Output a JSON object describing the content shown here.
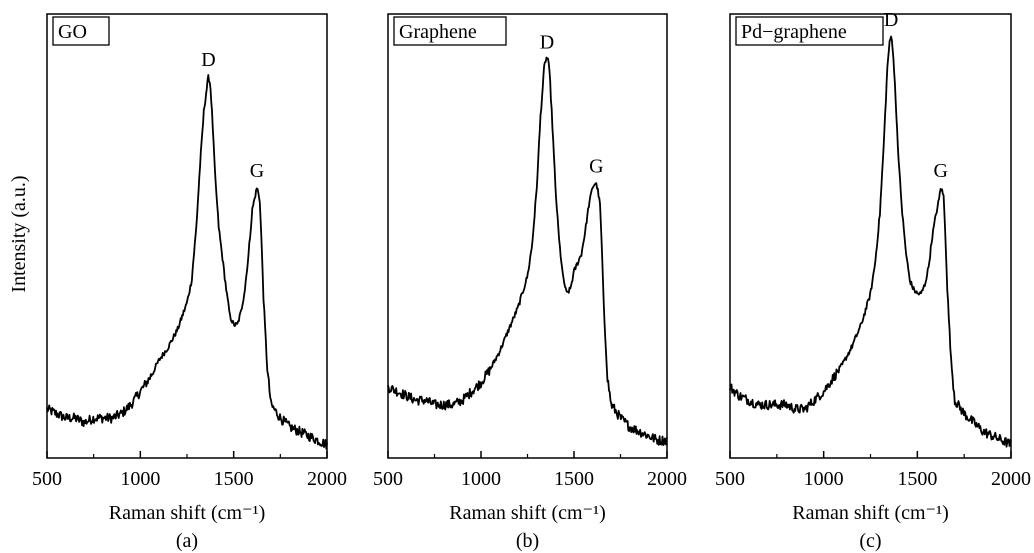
{
  "figure": {
    "ylabel": "Intensity (a.u.)",
    "line_color": "#000000",
    "background": "#ffffff"
  },
  "chart_data": [
    {
      "type": "line",
      "title": "GO",
      "caption": "(a)",
      "xlabel": "Raman shift (cm⁻¹)",
      "ylabel": "Intensity (a.u.)",
      "xlim": [
        500,
        2000
      ],
      "ylim": [
        0,
        100
      ],
      "xticks": [
        500,
        1000,
        1500,
        2000
      ],
      "grid": false,
      "series": [
        {
          "x": [
            500,
            550,
            600,
            650,
            700,
            750,
            800,
            850,
            900,
            950,
            1000,
            1050,
            1100,
            1150,
            1200,
            1250,
            1275,
            1300,
            1320,
            1340,
            1355,
            1365,
            1375,
            1385,
            1400,
            1420,
            1440,
            1460,
            1480,
            1500,
            1520,
            1540,
            1560,
            1580,
            1600,
            1615,
            1625,
            1640,
            1650,
            1660,
            1680,
            1700,
            1750,
            1800,
            1850,
            1900,
            1950,
            2000
          ],
          "y": [
            11,
            10,
            9,
            9,
            8,
            9,
            9,
            9,
            10,
            12,
            15,
            18,
            22,
            25,
            29,
            35,
            40,
            52,
            66,
            78,
            83,
            86,
            84,
            77,
            64,
            52,
            45,
            38,
            32,
            30,
            30,
            33,
            38,
            46,
            56,
            59,
            61,
            58,
            48,
            36,
            20,
            12,
            9,
            7,
            6,
            5,
            4,
            3
          ]
        }
      ],
      "annotations": [
        {
          "text": "D",
          "x": 1365,
          "y": 86
        },
        {
          "text": "G",
          "x": 1625,
          "y": 61
        }
      ]
    },
    {
      "type": "line",
      "title": "Graphene",
      "caption": "(b)",
      "xlabel": "Raman shift (cm⁻¹)",
      "ylabel": "",
      "xlim": [
        500,
        2000
      ],
      "ylim": [
        0,
        100
      ],
      "xticks": [
        500,
        1000,
        1500,
        2000
      ],
      "grid": false,
      "series": [
        {
          "x": [
            500,
            550,
            600,
            650,
            700,
            750,
            800,
            850,
            900,
            950,
            1000,
            1050,
            1100,
            1150,
            1200,
            1250,
            1275,
            1300,
            1320,
            1340,
            1350,
            1360,
            1370,
            1385,
            1400,
            1420,
            1440,
            1460,
            1480,
            1500,
            1520,
            1540,
            1560,
            1580,
            1600,
            1615,
            1625,
            1640,
            1650,
            1660,
            1680,
            1700,
            1750,
            1800,
            1850,
            1900,
            1950,
            2000
          ],
          "y": [
            16,
            15,
            14,
            13,
            13,
            12,
            12,
            12,
            13,
            15,
            17,
            20,
            24,
            29,
            34,
            41,
            48,
            61,
            77,
            88,
            90,
            90,
            86,
            74,
            61,
            49,
            41,
            37,
            38,
            42,
            44,
            46,
            51,
            57,
            61,
            62,
            61,
            57,
            47,
            34,
            18,
            12,
            9,
            7,
            6,
            5,
            4,
            4
          ]
        }
      ],
      "annotations": [
        {
          "text": "D",
          "x": 1355,
          "y": 90
        },
        {
          "text": "G",
          "x": 1620,
          "y": 62
        }
      ]
    },
    {
      "type": "line",
      "title": "Pd−graphene",
      "caption": "(c)",
      "xlabel": "Raman shift (cm⁻¹)",
      "ylabel": "",
      "xlim": [
        500,
        2000
      ],
      "ylim": [
        0,
        100
      ],
      "xticks": [
        500,
        1000,
        1500,
        2000
      ],
      "grid": false,
      "series": [
        {
          "x": [
            500,
            550,
            600,
            650,
            700,
            750,
            800,
            850,
            900,
            950,
            1000,
            1050,
            1100,
            1150,
            1200,
            1250,
            1275,
            1300,
            1320,
            1340,
            1350,
            1360,
            1370,
            1385,
            1400,
            1420,
            1440,
            1460,
            1480,
            1500,
            1520,
            1540,
            1560,
            1580,
            1600,
            1615,
            1625,
            1640,
            1650,
            1660,
            1680,
            1700,
            1750,
            1800,
            1850,
            1900,
            1950,
            2000
          ],
          "y": [
            16,
            14,
            13,
            12,
            12,
            12,
            12,
            11,
            11,
            13,
            15,
            18,
            21,
            25,
            30,
            37,
            44,
            55,
            70,
            88,
            93,
            95,
            92,
            80,
            67,
            55,
            46,
            40,
            38,
            37,
            37,
            39,
            43,
            50,
            55,
            58,
            61,
            59,
            50,
            38,
            22,
            13,
            10,
            8,
            6,
            5,
            4,
            3
          ]
        }
      ],
      "annotations": [
        {
          "text": "D",
          "x": 1360,
          "y": 95
        },
        {
          "text": "G",
          "x": 1625,
          "y": 61
        }
      ]
    }
  ]
}
